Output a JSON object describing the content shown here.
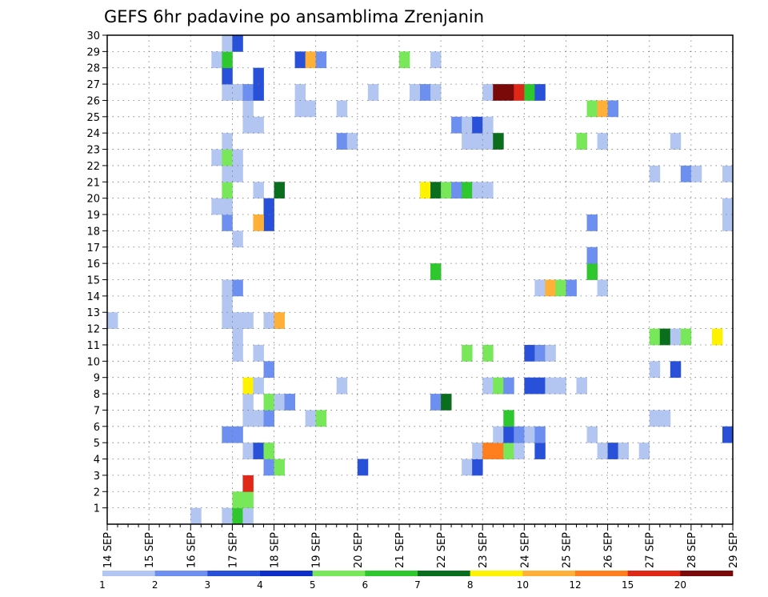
{
  "chart_data": {
    "type": "heatmap",
    "title": "GEFS 6hr padavine po ansamblima Zrenjanin",
    "x_ticks": [
      "14 SEP",
      "15 SEP",
      "16 SEP",
      "17 SEP",
      "18 SEP",
      "19 SEP",
      "20 SEP",
      "21 SEP",
      "22 SEP",
      "23 SEP",
      "24 SEP",
      "25 SEP",
      "26 SEP",
      "27 SEP",
      "28 SEP",
      "29 SEP"
    ],
    "x_step_hours": 6,
    "x_range_steps": [
      0,
      60
    ],
    "y_ticks": [
      1,
      2,
      3,
      4,
      5,
      6,
      7,
      8,
      9,
      10,
      11,
      12,
      13,
      14,
      15,
      16,
      17,
      18,
      19,
      20,
      21,
      22,
      23,
      24,
      25,
      26,
      27,
      28,
      29,
      30
    ],
    "y_range": [
      0,
      30
    ],
    "grid": true,
    "color_levels": [
      1,
      2,
      3,
      4,
      5,
      6,
      7,
      8,
      10,
      12,
      15,
      20
    ],
    "colors": [
      "#b3c6f2",
      "#6c8ff0",
      "#2850d8",
      "#0e2ec8",
      "#78e85a",
      "#2ec82e",
      "#0a6e1e",
      "#fff200",
      "#ffb038",
      "#ff7e1e",
      "#e02818",
      "#7a0a0a"
    ],
    "cells": [
      [
        12,
        12,
        1
      ],
      [
        8,
        0,
        1
      ],
      [
        11,
        0,
        1
      ],
      [
        12,
        0,
        6
      ],
      [
        13,
        0,
        1
      ],
      [
        13,
        1,
        5
      ],
      [
        12,
        1,
        5
      ],
      [
        13,
        2,
        11
      ],
      [
        15,
        3,
        2
      ],
      [
        16,
        3,
        5
      ],
      [
        24,
        3,
        3
      ],
      [
        34,
        3,
        1
      ],
      [
        35,
        3,
        3
      ],
      [
        13,
        4,
        1
      ],
      [
        14,
        4,
        3
      ],
      [
        15,
        4,
        5
      ],
      [
        35,
        4,
        1
      ],
      [
        36,
        4,
        10
      ],
      [
        37,
        4,
        10
      ],
      [
        38,
        4,
        5
      ],
      [
        39,
        4,
        1
      ],
      [
        41,
        4,
        3
      ],
      [
        47,
        4,
        1
      ],
      [
        48,
        4,
        3
      ],
      [
        49,
        4,
        1
      ],
      [
        51,
        4,
        1
      ],
      [
        11,
        5,
        2
      ],
      [
        12,
        5,
        2
      ],
      [
        37,
        5,
        1
      ],
      [
        38,
        5,
        3
      ],
      [
        39,
        5,
        2
      ],
      [
        40,
        5,
        1
      ],
      [
        41,
        5,
        2
      ],
      [
        46,
        5,
        1
      ],
      [
        59,
        5,
        3
      ],
      [
        13,
        6,
        1
      ],
      [
        14,
        6,
        1
      ],
      [
        15,
        6,
        2
      ],
      [
        19,
        6,
        1
      ],
      [
        20,
        6,
        5
      ],
      [
        38,
        6,
        6
      ],
      [
        52,
        6,
        1
      ],
      [
        53,
        6,
        1
      ],
      [
        13,
        7,
        1
      ],
      [
        15,
        7,
        5
      ],
      [
        16,
        7,
        1
      ],
      [
        17,
        7,
        2
      ],
      [
        31,
        7,
        2
      ],
      [
        32,
        7,
        7
      ],
      [
        13,
        8,
        8
      ],
      [
        14,
        8,
        1
      ],
      [
        22,
        8,
        1
      ],
      [
        36,
        8,
        1
      ],
      [
        37,
        8,
        5
      ],
      [
        38,
        8,
        2
      ],
      [
        40,
        8,
        3
      ],
      [
        41,
        8,
        3
      ],
      [
        42,
        8,
        1
      ],
      [
        43,
        8,
        1
      ],
      [
        45,
        8,
        1
      ],
      [
        15,
        9,
        2
      ],
      [
        52,
        9,
        1
      ],
      [
        54,
        9,
        3
      ],
      [
        12,
        10,
        1
      ],
      [
        14,
        10,
        1
      ],
      [
        34,
        10,
        5
      ],
      [
        36,
        10,
        5
      ],
      [
        40,
        10,
        3
      ],
      [
        41,
        10,
        2
      ],
      [
        42,
        10,
        1
      ],
      [
        12,
        11,
        1
      ],
      [
        52,
        11,
        5
      ],
      [
        53,
        11,
        7
      ],
      [
        54,
        11,
        1
      ],
      [
        55,
        11,
        5
      ],
      [
        58,
        11,
        8
      ],
      [
        0,
        12,
        1
      ],
      [
        11,
        12,
        1
      ],
      [
        13,
        12,
        1
      ],
      [
        15,
        12,
        1
      ],
      [
        16,
        12,
        9
      ],
      [
        11,
        13,
        1
      ],
      [
        11,
        14,
        1
      ],
      [
        12,
        14,
        2
      ],
      [
        41,
        14,
        1
      ],
      [
        42,
        14,
        9
      ],
      [
        43,
        14,
        5
      ],
      [
        44,
        14,
        2
      ],
      [
        47,
        14,
        1
      ],
      [
        31,
        15,
        6
      ],
      [
        46,
        15,
        6
      ],
      [
        46,
        16,
        2
      ],
      [
        12,
        17,
        1
      ],
      [
        11,
        18,
        2
      ],
      [
        15,
        18,
        3
      ],
      [
        14,
        18,
        9
      ],
      [
        46,
        18,
        2
      ],
      [
        59,
        18,
        1
      ],
      [
        10,
        19,
        1
      ],
      [
        11,
        19,
        1
      ],
      [
        15,
        19,
        3
      ],
      [
        59,
        19,
        1
      ],
      [
        11,
        20,
        5
      ],
      [
        14,
        20,
        1
      ],
      [
        16,
        20,
        7
      ],
      [
        30,
        20,
        8
      ],
      [
        31,
        20,
        7
      ],
      [
        32,
        20,
        5
      ],
      [
        33,
        20,
        2
      ],
      [
        34,
        20,
        6
      ],
      [
        35,
        20,
        1
      ],
      [
        36,
        20,
        1
      ],
      [
        11,
        21,
        1
      ],
      [
        12,
        21,
        1
      ],
      [
        52,
        21,
        1
      ],
      [
        55,
        21,
        2
      ],
      [
        56,
        21,
        1
      ],
      [
        59,
        21,
        1
      ],
      [
        10,
        22,
        1
      ],
      [
        11,
        22,
        5
      ],
      [
        12,
        22,
        1
      ],
      [
        11,
        23,
        1
      ],
      [
        22,
        23,
        2
      ],
      [
        23,
        23,
        1
      ],
      [
        34,
        23,
        1
      ],
      [
        35,
        23,
        1
      ],
      [
        36,
        23,
        1
      ],
      [
        37,
        23,
        7
      ],
      [
        45,
        23,
        5
      ],
      [
        47,
        23,
        1
      ],
      [
        54,
        23,
        1
      ],
      [
        13,
        24,
        1
      ],
      [
        14,
        24,
        1
      ],
      [
        33,
        24,
        2
      ],
      [
        34,
        24,
        1
      ],
      [
        35,
        24,
        3
      ],
      [
        36,
        24,
        1
      ],
      [
        13,
        25,
        1
      ],
      [
        18,
        25,
        1
      ],
      [
        19,
        25,
        1
      ],
      [
        22,
        25,
        1
      ],
      [
        46,
        25,
        5
      ],
      [
        47,
        25,
        9
      ],
      [
        48,
        25,
        2
      ],
      [
        11,
        26,
        1
      ],
      [
        12,
        26,
        1
      ],
      [
        13,
        26,
        2
      ],
      [
        14,
        26,
        3
      ],
      [
        18,
        26,
        1
      ],
      [
        25,
        26,
        1
      ],
      [
        29,
        26,
        1
      ],
      [
        30,
        26,
        2
      ],
      [
        31,
        26,
        1
      ],
      [
        36,
        26,
        1
      ],
      [
        37,
        26,
        12
      ],
      [
        38,
        26,
        12
      ],
      [
        39,
        26,
        11
      ],
      [
        40,
        26,
        6
      ],
      [
        41,
        26,
        3
      ],
      [
        11,
        27,
        3
      ],
      [
        14,
        27,
        3
      ],
      [
        10,
        28,
        1
      ],
      [
        11,
        28,
        6
      ],
      [
        18,
        28,
        3
      ],
      [
        19,
        28,
        9
      ],
      [
        20,
        28,
        2
      ],
      [
        28,
        28,
        5
      ],
      [
        31,
        28,
        1
      ],
      [
        11,
        29,
        1
      ],
      [
        12,
        29,
        3
      ]
    ],
    "hour_cells": [
      [
        11,
        0,
        3
      ],
      [
        11,
        0,
        6
      ],
      [
        8,
        0,
        2
      ]
    ]
  }
}
